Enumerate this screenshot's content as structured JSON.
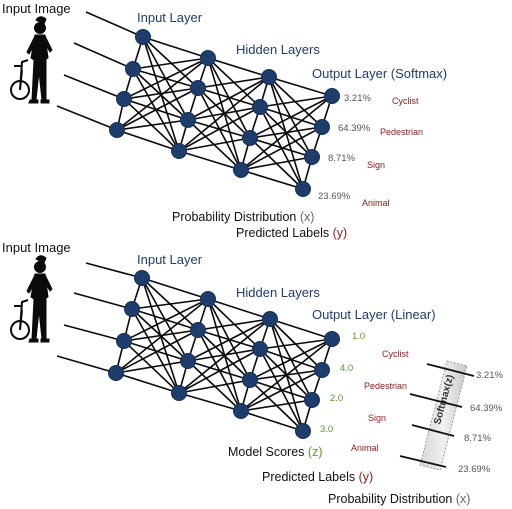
{
  "panel_top": {
    "input_image_label": "Input Image",
    "input_layer_label": "Input Layer",
    "hidden_layers_label": "Hidden Layers",
    "output_layer_label": "Output Layer (Softmax)",
    "outputs": [
      {
        "percent": "3.21%",
        "label": "Cyclist"
      },
      {
        "percent": "64.39%",
        "label": "Pedestrian"
      },
      {
        "percent": "8.71%",
        "label": "Sign"
      },
      {
        "percent": "23.69%",
        "label": "Animal"
      }
    ],
    "caption_prob_text": "Probability Distribution",
    "caption_prob_var": "(x)",
    "caption_pred_text": "Predicted Labels",
    "caption_pred_var": "(y)"
  },
  "panel_bottom": {
    "input_image_label": "Input Image",
    "input_layer_label": "Input Layer",
    "hidden_layers_label": "Hidden Layers",
    "output_layer_label": "Output Layer (Linear)",
    "scores": [
      "1.0",
      "4.0",
      "2.0",
      "3.0"
    ],
    "labels": [
      "Cyclist",
      "Pedestrian",
      "Sign",
      "Animal"
    ],
    "percents": [
      "3.21%",
      "64.39%",
      "8.71%",
      "23.69%"
    ],
    "softmax_label": "Softmax(z)",
    "caption_scores_text": "Model Scores",
    "caption_scores_var": "(z)",
    "caption_pred_text": "Predicted Labels",
    "caption_pred_var": "(y)",
    "caption_prob_text": "Probability Distribution",
    "caption_prob_var": "(x)"
  },
  "colors": {
    "node": "#1f3d6b",
    "heading": "#1f3c6e",
    "label_red": "#8b1a1a",
    "score_green": "#5a9a2a"
  }
}
